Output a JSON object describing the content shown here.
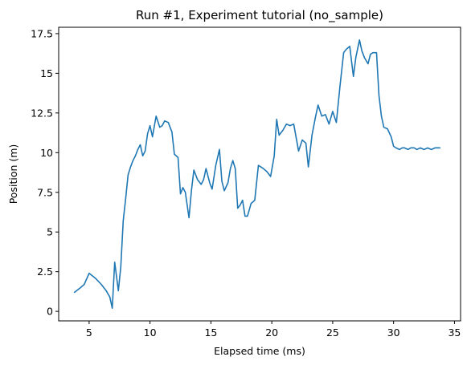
{
  "chart_data": {
    "type": "line",
    "title": "Run #1, Experiment tutorial (no_sample)",
    "xlabel": "Elapsed time (ms)",
    "ylabel": "Position (m)",
    "xlim": [
      2.5,
      35.5
    ],
    "ylim": [
      -0.6,
      17.9
    ],
    "xticks": [
      5,
      10,
      15,
      20,
      25,
      30,
      35
    ],
    "xtick_labels": [
      "5",
      "10",
      "15",
      "20",
      "25",
      "30",
      "35"
    ],
    "yticks": [
      0,
      2.5,
      5,
      7.5,
      10,
      12.5,
      15,
      17.5
    ],
    "ytick_labels": [
      "0",
      "2.5",
      "5",
      "7.5",
      "10",
      "12.5",
      "15",
      "17.5"
    ],
    "grid": false,
    "color": "#1f77b4",
    "series": [
      {
        "x": [
          3.8,
          4.3,
          4.6,
          5.0,
          5.5,
          6.0,
          6.4,
          6.7,
          6.9,
          7.1,
          7.4,
          7.6,
          7.8,
          8.0,
          8.2,
          8.4,
          8.6,
          8.8,
          9.0,
          9.2,
          9.4,
          9.6,
          9.8,
          10.0,
          10.2,
          10.5,
          10.8,
          11.0,
          11.2,
          11.5,
          11.8,
          12.0,
          12.3,
          12.5,
          12.7,
          12.9,
          13.2,
          13.4,
          13.6,
          13.9,
          14.2,
          14.4,
          14.6,
          14.9,
          15.1,
          15.4,
          15.7,
          15.9,
          16.1,
          16.4,
          16.6,
          16.8,
          17.0,
          17.2,
          17.4,
          17.6,
          17.8,
          18.0,
          18.3,
          18.6,
          18.9,
          19.1,
          19.3,
          19.6,
          19.9,
          20.2,
          20.4,
          20.6,
          20.9,
          21.2,
          21.5,
          21.8,
          22.2,
          22.5,
          22.8,
          23.0,
          23.3,
          23.6,
          23.8,
          24.1,
          24.4,
          24.7,
          25.0,
          25.3,
          25.6,
          25.9,
          26.1,
          26.4,
          26.7,
          26.9,
          27.2,
          27.4,
          27.6,
          27.9,
          28.1,
          28.3,
          28.6,
          28.8,
          29.0,
          29.2,
          29.5,
          29.8,
          30.0,
          30.2,
          30.5,
          30.7,
          30.9,
          31.2,
          31.4,
          31.7,
          31.9,
          32.2,
          32.5,
          32.8,
          33.1,
          33.4,
          33.8
        ],
        "y": [
          1.2,
          1.5,
          1.7,
          2.4,
          2.1,
          1.7,
          1.3,
          0.9,
          0.2,
          3.1,
          1.3,
          2.8,
          5.7,
          7.1,
          8.6,
          9.1,
          9.5,
          9.8,
          10.2,
          10.5,
          9.8,
          10.1,
          11.2,
          11.7,
          11.0,
          12.3,
          11.6,
          11.7,
          12.0,
          11.9,
          11.3,
          9.9,
          9.7,
          7.4,
          7.8,
          7.5,
          5.9,
          7.6,
          8.9,
          8.3,
          8.0,
          8.3,
          9.0,
          8.1,
          7.7,
          9.2,
          10.2,
          8.2,
          7.6,
          8.1,
          9.0,
          9.5,
          9.0,
          6.5,
          6.7,
          7.0,
          6.0,
          6.0,
          6.8,
          7.0,
          9.2,
          9.1,
          9.0,
          8.8,
          8.5,
          9.8,
          12.1,
          11.1,
          11.4,
          11.8,
          11.7,
          11.8,
          10.1,
          10.8,
          10.6,
          9.1,
          11.1,
          12.3,
          13.0,
          12.3,
          12.4,
          11.8,
          12.6,
          11.9,
          14.2,
          16.3,
          16.5,
          16.7,
          14.8,
          16.0,
          17.1,
          16.4,
          16.0,
          15.6,
          16.2,
          16.3,
          16.3,
          13.6,
          12.3,
          11.6,
          11.5,
          11.0,
          10.4,
          10.3,
          10.2,
          10.3,
          10.3,
          10.2,
          10.3,
          10.3,
          10.2,
          10.3,
          10.2,
          10.3,
          10.2,
          10.3,
          10.3
        ]
      }
    ]
  }
}
